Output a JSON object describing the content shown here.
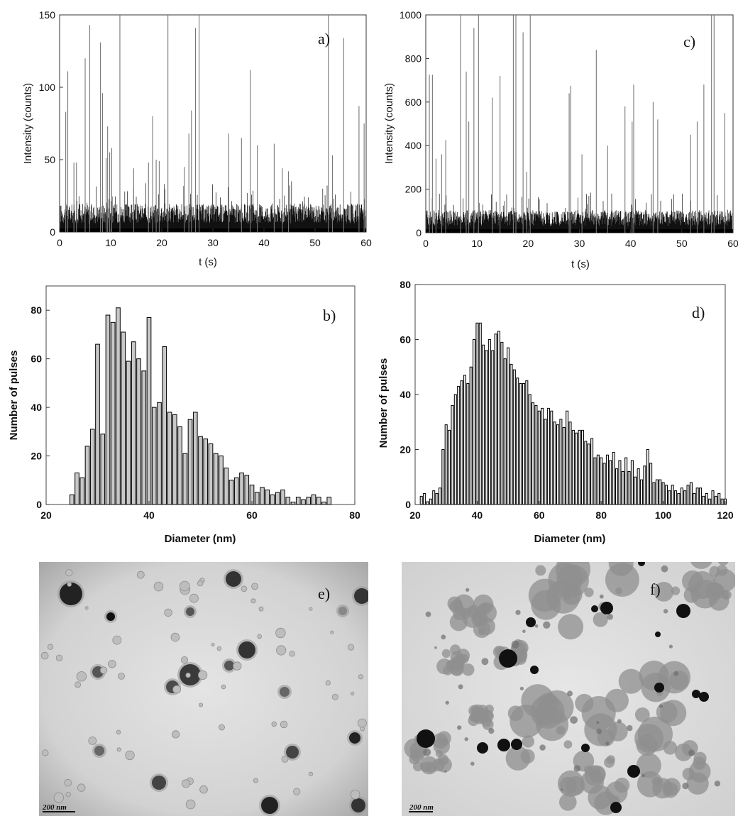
{
  "chart_data": [
    {
      "id": "a",
      "panel_label": "a)",
      "type": "line",
      "xlabel": "t (s)",
      "ylabel": "Intensity (counts)",
      "xlim": [
        0,
        60
      ],
      "ylim": [
        0,
        150
      ],
      "xticks": [
        0,
        10,
        20,
        30,
        40,
        50,
        60
      ],
      "yticks": [
        0,
        50,
        100,
        150
      ],
      "baseline_level": 15,
      "peaks": {
        "x": [
          1.2,
          1.6,
          2.8,
          3.3,
          5.0,
          5.9,
          8.0,
          8.4,
          9.1,
          9.4,
          9.8,
          10.2,
          11.8,
          14.5,
          17.4,
          18.2,
          18.9,
          19.5,
          21.2,
          24.4,
          25.3,
          25.8,
          26.6,
          27.3,
          33.1,
          35.6,
          37.3,
          38.7,
          42.0,
          43.6,
          44.8,
          52.6,
          53.4,
          55.6,
          58.6,
          59.6
        ],
        "y": [
          83,
          111,
          48,
          48,
          120,
          143,
          131,
          96,
          51,
          73,
          55,
          58,
          150,
          44,
          48,
          80,
          50,
          49,
          150,
          45,
          68,
          84,
          141,
          150,
          68,
          65,
          112,
          60,
          61,
          44,
          42,
          150,
          53,
          134,
          87,
          75
        ]
      }
    },
    {
      "id": "c",
      "panel_label": "c)",
      "type": "line",
      "xlabel": "t (s)",
      "ylabel": "Intensity (counts)",
      "xlim": [
        0,
        60
      ],
      "ylim": [
        0,
        1000
      ],
      "xticks": [
        0,
        10,
        20,
        30,
        40,
        50,
        60
      ],
      "yticks": [
        0,
        200,
        400,
        600,
        800,
        1000
      ],
      "baseline_level": 80,
      "peaks": {
        "x": [
          0.7,
          1.3,
          2.0,
          3.1,
          3.9,
          6.8,
          7.9,
          8.4,
          9.4,
          10.3,
          13.0,
          14.5,
          17.1,
          17.6,
          19.0,
          19.7,
          20.4,
          28.0,
          28.3,
          30.5,
          33.3,
          35.5,
          38.9,
          40.3,
          40.6,
          44.4,
          45.3,
          51.7,
          53.0,
          54.3,
          55.8,
          56.3,
          58.4
        ],
        "y": [
          725,
          725,
          340,
          360,
          425,
          1000,
          740,
          510,
          940,
          1000,
          620,
          720,
          1000,
          1000,
          920,
          280,
          1000,
          640,
          675,
          360,
          840,
          400,
          580,
          510,
          680,
          600,
          520,
          450,
          510,
          680,
          1000,
          1000,
          550
        ]
      }
    },
    {
      "id": "b",
      "panel_label": "b)",
      "type": "bar",
      "xlabel": "Diameter (nm)",
      "ylabel": "Number of pulses",
      "xlim": [
        20,
        80
      ],
      "ylim": [
        0,
        90
      ],
      "xticks": [
        20,
        40,
        60,
        80
      ],
      "yticks": [
        0,
        20,
        40,
        60,
        80
      ],
      "x": [
        25,
        26,
        27,
        28,
        29,
        30,
        31,
        32,
        33,
        34,
        35,
        36,
        37,
        38,
        39,
        40,
        41,
        42,
        43,
        44,
        45,
        46,
        47,
        48,
        49,
        50,
        51,
        52,
        53,
        54,
        55,
        56,
        57,
        58,
        59,
        60,
        61,
        62,
        63,
        64,
        65,
        66,
        67,
        68,
        69,
        70,
        71,
        72,
        73,
        74,
        75
      ],
      "values": [
        4,
        13,
        11,
        24,
        31,
        66,
        29,
        78,
        75,
        81,
        71,
        59,
        67,
        60,
        55,
        77,
        40,
        42,
        65,
        38,
        37,
        32,
        21,
        35,
        38,
        28,
        27,
        25,
        21,
        20,
        15,
        10,
        11,
        13,
        12,
        8,
        5,
        7,
        6,
        4,
        5,
        6,
        3,
        1,
        3,
        2,
        3,
        4,
        3,
        1,
        3
      ]
    },
    {
      "id": "d",
      "panel_label": "d)",
      "type": "bar",
      "xlabel": "Diameter (nm)",
      "ylabel": "Number of pulses",
      "xlim": [
        20,
        120
      ],
      "ylim": [
        0,
        80
      ],
      "xticks": [
        20,
        40,
        60,
        80,
        100,
        120
      ],
      "yticks": [
        0,
        20,
        40,
        60,
        80
      ],
      "x": [
        22,
        23,
        24,
        25,
        26,
        27,
        28,
        29,
        30,
        31,
        32,
        33,
        34,
        35,
        36,
        37,
        38,
        39,
        40,
        41,
        42,
        43,
        44,
        45,
        46,
        47,
        48,
        49,
        50,
        51,
        52,
        53,
        54,
        55,
        56,
        57,
        58,
        59,
        60,
        61,
        62,
        63,
        64,
        65,
        66,
        67,
        68,
        69,
        70,
        71,
        72,
        73,
        74,
        75,
        76,
        77,
        78,
        79,
        80,
        81,
        82,
        83,
        84,
        85,
        86,
        87,
        88,
        89,
        90,
        91,
        92,
        93,
        94,
        95,
        96,
        97,
        98,
        99,
        100,
        101,
        102,
        103,
        104,
        105,
        106,
        107,
        108,
        109,
        110,
        111,
        112,
        113,
        114,
        115,
        116,
        117,
        118,
        119,
        120
      ],
      "values": [
        3,
        4,
        1,
        2,
        5,
        4,
        6,
        20,
        29,
        27,
        36,
        40,
        43,
        45,
        47,
        44,
        50,
        60,
        66,
        66,
        58,
        56,
        60,
        56,
        62,
        63,
        59,
        53,
        57,
        51,
        49,
        46,
        44,
        44,
        45,
        40,
        37,
        36,
        34,
        35,
        31,
        35,
        34,
        30,
        29,
        31,
        28,
        34,
        30,
        27,
        26,
        27,
        27,
        23,
        22,
        24,
        17,
        18,
        17,
        15,
        18,
        16,
        19,
        13,
        16,
        12,
        17,
        12,
        16,
        10,
        13,
        9,
        14,
        20,
        15,
        8,
        9,
        9,
        8,
        7,
        5,
        7,
        5,
        4,
        6,
        5,
        7,
        8,
        4,
        6,
        6,
        3,
        4,
        2,
        5,
        3,
        4,
        2,
        2
      ],
      "y_tick_label_style": "bold"
    }
  ],
  "micrographs": [
    {
      "id": "e",
      "panel_label": "e)",
      "scale_bar": "200 nm"
    },
    {
      "id": "f",
      "panel_label": "f)",
      "scale_bar": "200 nm"
    }
  ]
}
